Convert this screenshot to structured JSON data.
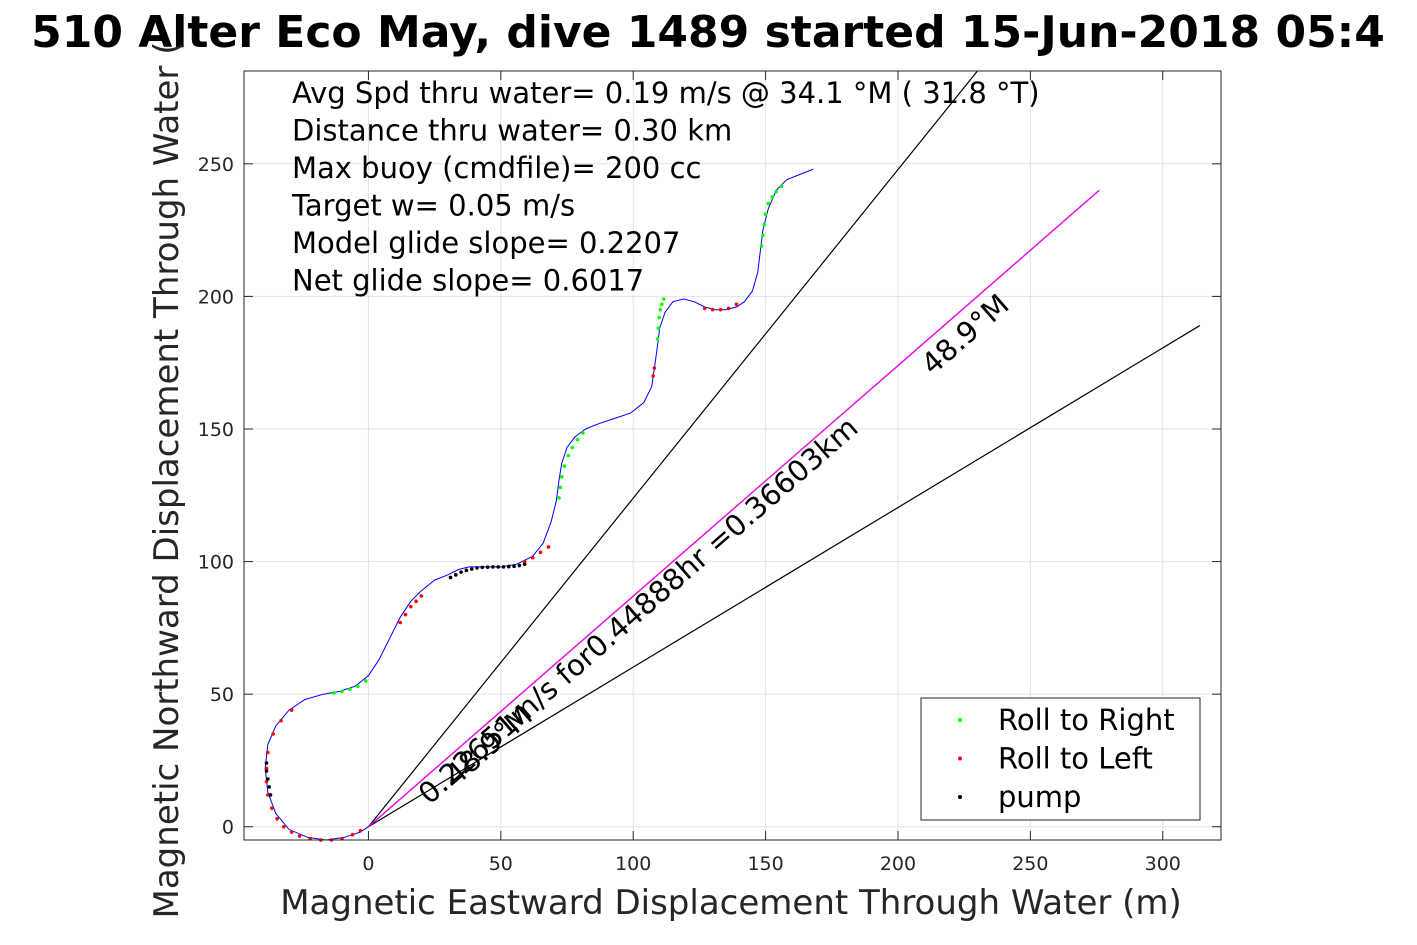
{
  "chart_data": {
    "type": "line",
    "title": "510 Alter Eco May, dive 1489 started 15-Jun-2018 05:4",
    "xlabel": "Magnetic Eastward Displacement Through Water (m)",
    "ylabel": "Magnetic Northward Displacement Through Water (",
    "xlim": [
      -47,
      322
    ],
    "ylim": [
      -5,
      285
    ],
    "xticks": [
      0,
      50,
      100,
      150,
      200,
      250,
      300
    ],
    "yticks": [
      0,
      50,
      100,
      150,
      200,
      250
    ],
    "grid": true,
    "annotations": [
      "Avg Spd thru water=  0.19 m/s @  34.1 °M ( 31.8 °T)",
      "Distance thru water=  0.30 km",
      "Max buoy (cmdfile)= 200 cc",
      "Target w= 0.05 m/s",
      "Model glide slope= 0.2207",
      "Net glide slope= 0.6017"
    ],
    "track": {
      "color": "#0000ff",
      "x": [
        0,
        -3,
        -9,
        -16,
        -23,
        -30,
        -35,
        -38,
        -39,
        -38,
        -35,
        -30,
        -24,
        -17,
        -11,
        -5,
        0,
        4,
        8,
        12,
        16,
        20,
        25,
        30,
        34,
        38,
        41,
        45,
        50,
        56,
        62,
        66,
        69,
        71,
        72,
        73,
        75,
        78,
        82,
        87,
        93,
        99,
        104,
        107,
        108,
        109,
        110,
        112,
        115,
        119,
        123,
        127,
        131,
        135,
        139,
        142,
        145,
        147,
        148,
        149,
        151,
        154,
        158,
        163,
        168
      ],
      "y": [
        0,
        -2,
        -4,
        -5,
        -4,
        -1,
        5,
        13,
        22,
        31,
        38,
        44,
        48,
        50,
        51,
        53,
        57,
        63,
        71,
        79,
        85,
        89,
        93,
        95,
        97,
        98,
        98,
        98,
        98,
        99,
        102,
        107,
        115,
        123,
        131,
        137,
        143,
        147,
        150,
        152,
        154,
        156,
        160,
        166,
        173,
        180,
        188,
        194,
        198,
        199,
        198,
        196,
        195,
        195,
        196,
        198,
        202,
        209,
        217,
        225,
        233,
        240,
        244,
        246,
        248
      ]
    },
    "roll_right": {
      "name": "Roll to Right",
      "color": "#00ff00",
      "x": [
        -13,
        -10,
        -7,
        -4,
        -1,
        72,
        72.5,
        73,
        74,
        75.5,
        77,
        79,
        81,
        109.2,
        109.5,
        109.8,
        110.2,
        110.8,
        111.5,
        148.5,
        149,
        149.5,
        150,
        151,
        152.5,
        154,
        156
      ],
      "y": [
        50.5,
        51,
        51.8,
        53,
        55,
        124,
        128,
        132,
        136,
        140,
        143,
        146,
        148.5,
        184,
        188,
        192,
        195,
        197,
        199,
        219,
        223,
        227,
        231,
        235,
        237.5,
        239.5,
        241.5
      ]
    },
    "roll_left": {
      "name": "Roll to Left",
      "color": "#ff0000",
      "x": [
        -29,
        -33,
        -36,
        -38,
        -38.5,
        -38.5,
        -38,
        -36.5,
        -34.5,
        -32,
        -29,
        -26,
        -22,
        -18,
        -14,
        -10,
        -6,
        -3,
        12,
        14,
        16,
        18,
        20,
        59,
        62,
        65,
        68,
        127,
        130,
        133,
        136,
        139,
        107.5,
        108
      ],
      "y": [
        44,
        40,
        35,
        28,
        22,
        17,
        12,
        7,
        3,
        0,
        -2,
        -3.5,
        -4.5,
        -5,
        -5,
        -4.5,
        -3,
        -1.5,
        77,
        80,
        83,
        85,
        87,
        100,
        101.5,
        103.5,
        105.5,
        195.5,
        195,
        195,
        195.5,
        197,
        170,
        173
      ]
    },
    "pump": {
      "name": "pump",
      "color": "#000000",
      "x": [
        -38.5,
        -38.5,
        -38,
        -37.5,
        -37,
        31,
        33,
        35,
        37,
        39,
        41,
        43,
        45,
        47,
        49,
        51,
        53,
        55,
        57,
        59
      ],
      "y": [
        24,
        21,
        18,
        15,
        12,
        94,
        95,
        96,
        96.7,
        97.2,
        97.6,
        97.8,
        97.9,
        98,
        98,
        98,
        98.1,
        98.2,
        98.5,
        99
      ]
    },
    "current_line": {
      "color": "#ff00ff",
      "x": [
        0,
        276
      ],
      "y": [
        0,
        240
      ]
    },
    "black_lines": [
      {
        "x": [
          0,
          230
        ],
        "y": [
          0,
          285
        ]
      },
      {
        "x": [
          0,
          276
        ],
        "y": [
          0,
          240
        ]
      },
      {
        "x": [
          0,
          314
        ],
        "y": [
          0,
          189
        ]
      }
    ],
    "line_labels": {
      "current": "0.22651m/s for0.44888hr =0.36603km",
      "heading_upper": "48.9°M",
      "heading_lower": "48.9°M"
    },
    "legend": {
      "position": "bottom-right",
      "entries": [
        {
          "label": "Roll to Right",
          "color": "#00ff00"
        },
        {
          "label": "Roll to Left",
          "color": "#ff0000"
        },
        {
          "label": "pump",
          "color": "#000000"
        }
      ]
    }
  }
}
